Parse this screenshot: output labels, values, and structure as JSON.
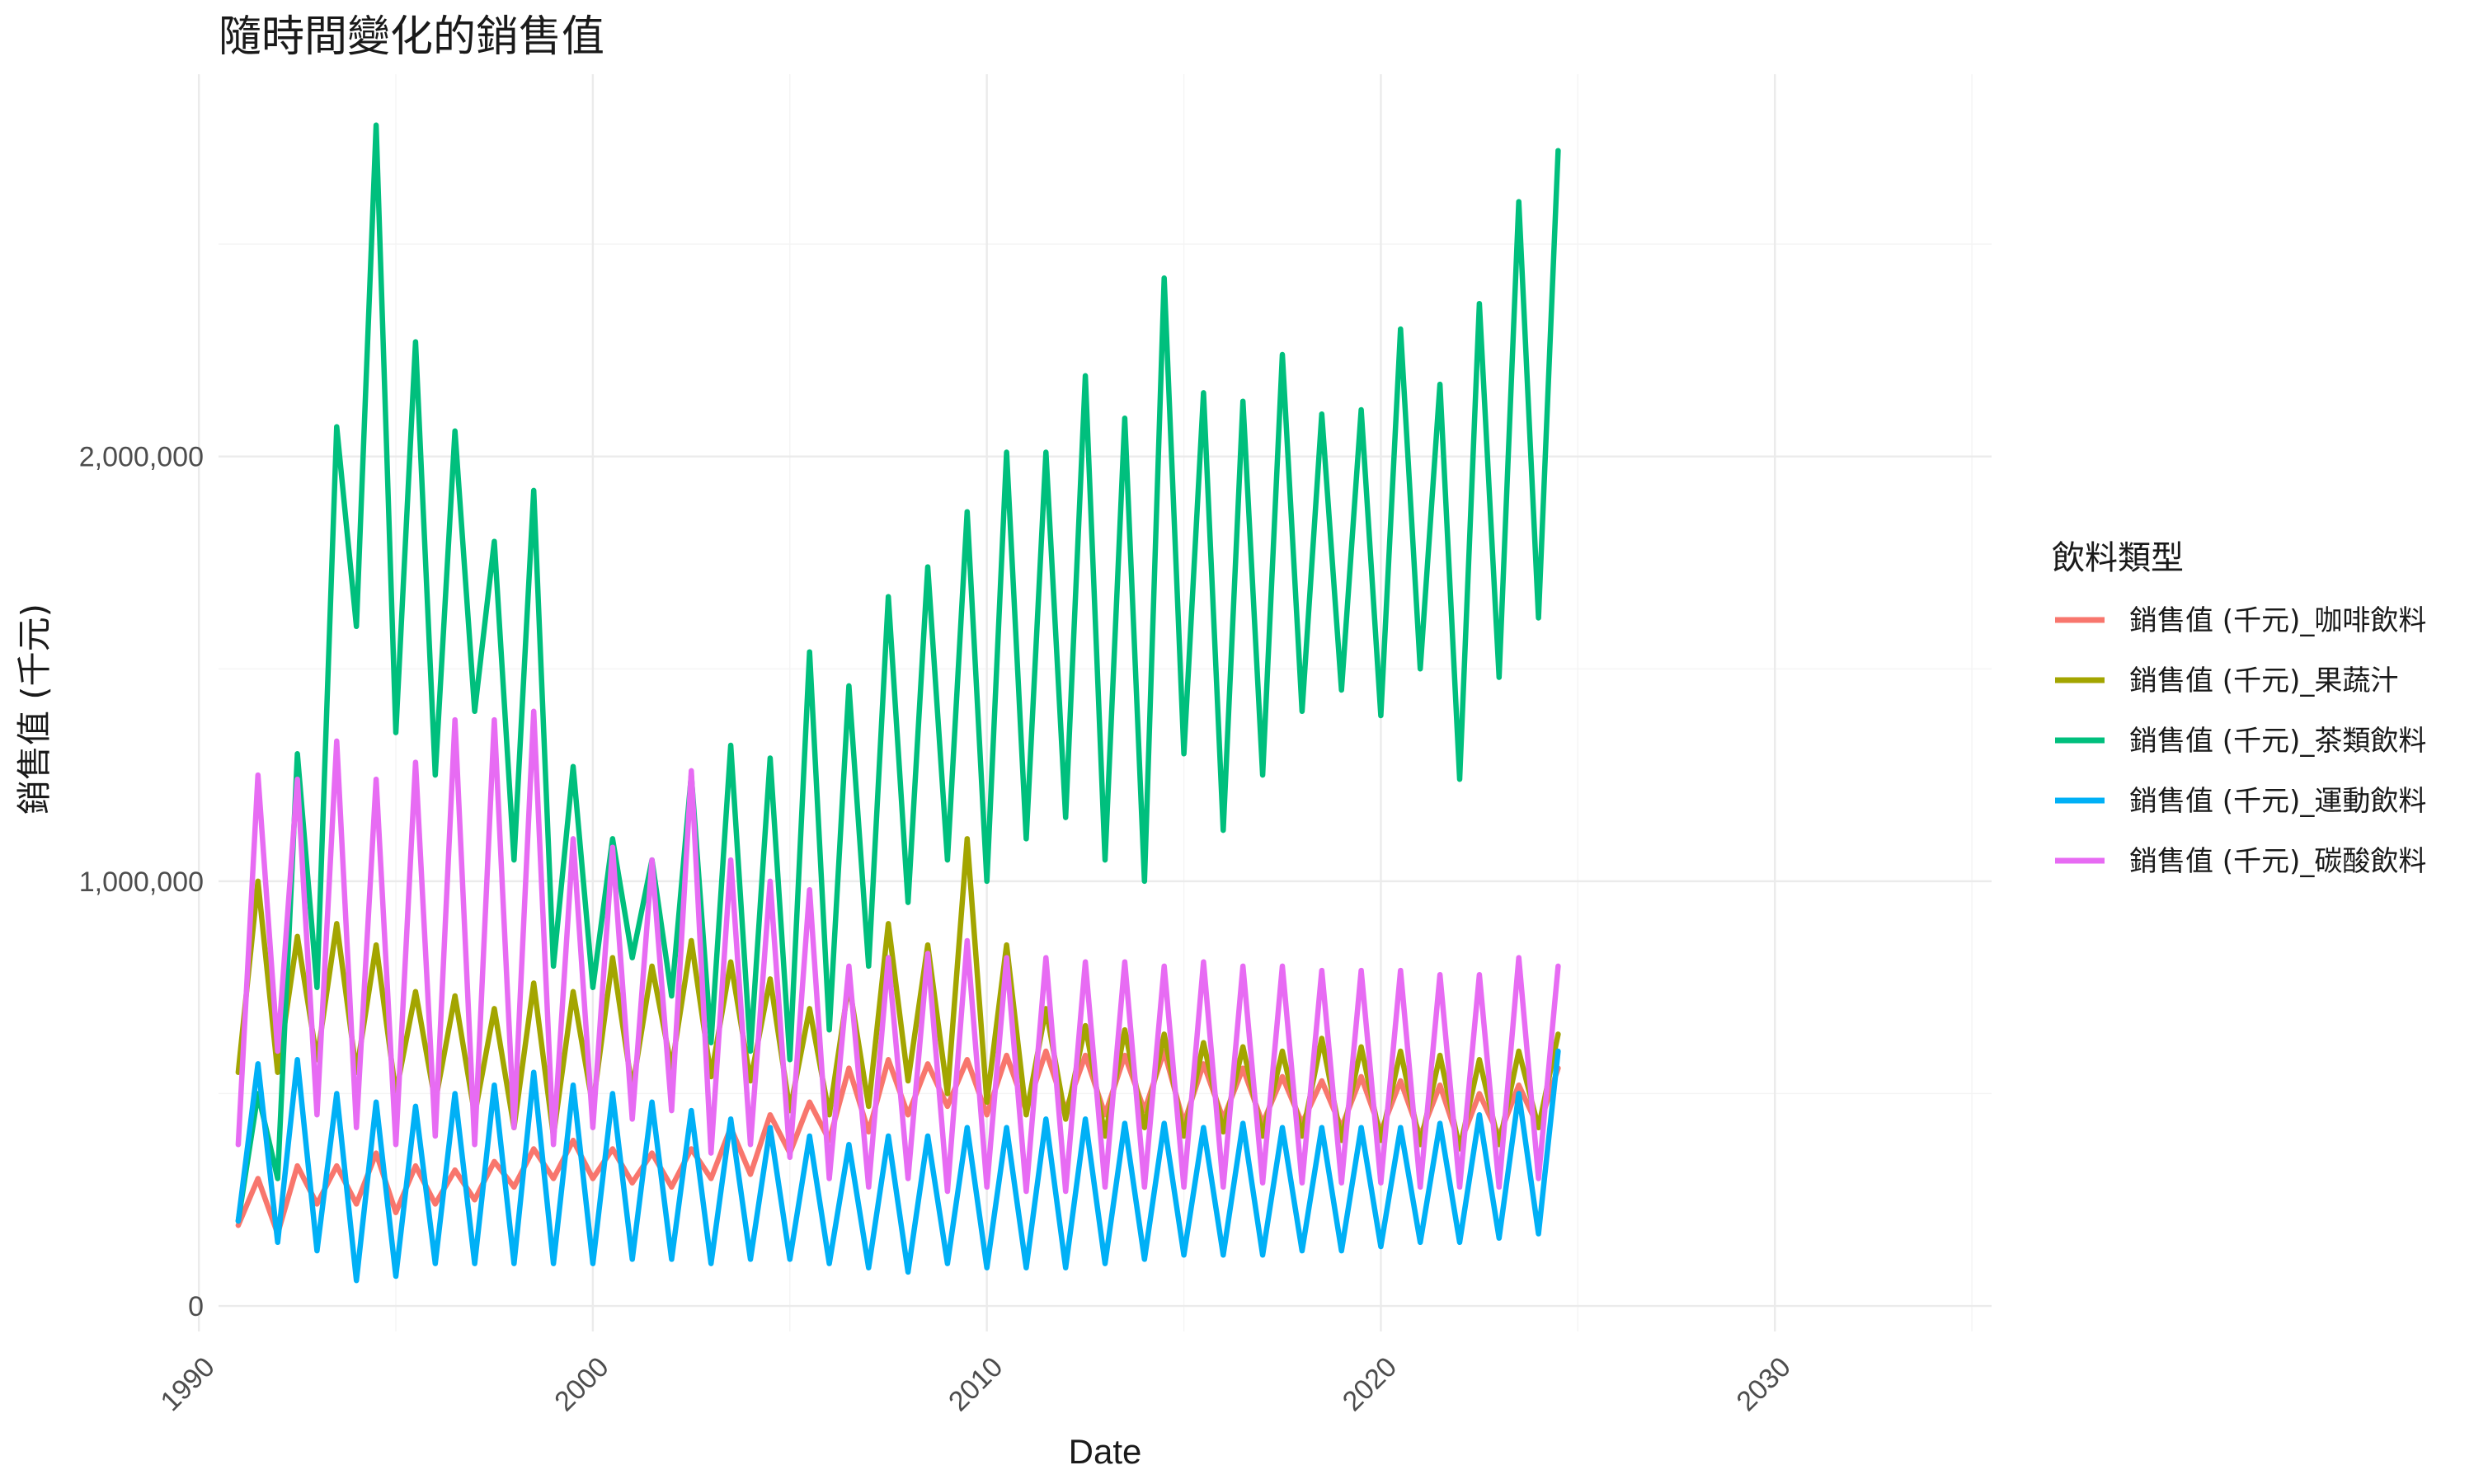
{
  "chart_data": {
    "type": "line",
    "title": "隨時間變化的銷售值",
    "xlabel": "Date",
    "ylabel": "銷售值 (千元)",
    "xlim": [
      1990.5,
      2035.5
    ],
    "ylim": [
      -60000,
      2900000
    ],
    "x_ticks": [
      1990,
      2000,
      2010,
      2020,
      2030
    ],
    "y_ticks": [
      0,
      1000000,
      2000000
    ],
    "y_tick_labels": [
      "0",
      "1,000,000",
      "2,000,000"
    ],
    "grid": true,
    "legend_position": "right",
    "legend_title": "飲料類型",
    "series": [
      {
        "name": "銷售值 (千元)_咖啡飲料",
        "color": "#F8766D",
        "x": [
          1991.0,
          1991.5,
          1992.0,
          1992.5,
          1993.0,
          1993.5,
          1994.0,
          1994.5,
          1995.0,
          1995.5,
          1996.0,
          1996.5,
          1997.0,
          1997.5,
          1998.0,
          1998.5,
          1999.0,
          1999.5,
          2000.0,
          2000.5,
          2001.0,
          2001.5,
          2002.0,
          2002.5,
          2003.0,
          2003.5,
          2004.0,
          2004.5,
          2005.0,
          2005.5,
          2006.0,
          2006.5,
          2007.0,
          2007.5,
          2008.0,
          2008.5,
          2009.0,
          2009.5,
          2010.0,
          2010.5,
          2011.0,
          2011.5,
          2012.0,
          2012.5,
          2013.0,
          2013.5,
          2014.0,
          2014.5,
          2015.0,
          2015.5,
          2016.0,
          2016.5,
          2017.0,
          2017.5,
          2018.0,
          2018.5,
          2019.0,
          2019.5,
          2020.0,
          2020.5,
          2021.0,
          2021.5,
          2022.0,
          2022.5,
          2023.0,
          2023.5,
          2024.0,
          2024.5
        ],
        "y": [
          190000,
          300000,
          170000,
          330000,
          240000,
          330000,
          240000,
          360000,
          220000,
          330000,
          240000,
          320000,
          250000,
          340000,
          280000,
          370000,
          300000,
          390000,
          300000,
          370000,
          290000,
          360000,
          280000,
          370000,
          300000,
          420000,
          310000,
          450000,
          360000,
          480000,
          390000,
          560000,
          410000,
          580000,
          450000,
          570000,
          470000,
          580000,
          450000,
          590000,
          460000,
          600000,
          460000,
          590000,
          450000,
          590000,
          460000,
          600000,
          430000,
          570000,
          440000,
          560000,
          430000,
          540000,
          430000,
          530000,
          420000,
          540000,
          410000,
          530000,
          400000,
          520000,
          380000,
          500000,
          400000,
          520000,
          420000,
          560000
        ]
      },
      {
        "name": "銷售值 (千元)_果蔬汁",
        "color": "#A3A500",
        "x": [
          1991.0,
          1991.5,
          1992.0,
          1992.5,
          1993.0,
          1993.5,
          1994.0,
          1994.5,
          1995.0,
          1995.5,
          1996.0,
          1996.5,
          1997.0,
          1997.5,
          1998.0,
          1998.5,
          1999.0,
          1999.5,
          2000.0,
          2000.5,
          2001.0,
          2001.5,
          2002.0,
          2002.5,
          2003.0,
          2003.5,
          2004.0,
          2004.5,
          2005.0,
          2005.5,
          2006.0,
          2006.5,
          2007.0,
          2007.5,
          2008.0,
          2008.5,
          2009.0,
          2009.5,
          2010.0,
          2010.5,
          2011.0,
          2011.5,
          2012.0,
          2012.5,
          2013.0,
          2013.5,
          2014.0,
          2014.5,
          2015.0,
          2015.5,
          2016.0,
          2016.5,
          2017.0,
          2017.5,
          2018.0,
          2018.5,
          2019.0,
          2019.5,
          2020.0,
          2020.5,
          2021.0,
          2021.5,
          2022.0,
          2022.5,
          2023.0,
          2023.5,
          2024.0,
          2024.5
        ],
        "y": [
          550000,
          1000000,
          550000,
          870000,
          580000,
          900000,
          550000,
          850000,
          500000,
          740000,
          480000,
          730000,
          450000,
          700000,
          420000,
          760000,
          400000,
          740000,
          470000,
          820000,
          510000,
          800000,
          560000,
          860000,
          540000,
          810000,
          530000,
          770000,
          460000,
          700000,
          450000,
          760000,
          470000,
          900000,
          530000,
          850000,
          500000,
          1100000,
          480000,
          850000,
          450000,
          700000,
          440000,
          660000,
          400000,
          650000,
          420000,
          640000,
          400000,
          620000,
          410000,
          610000,
          400000,
          600000,
          400000,
          630000,
          390000,
          610000,
          390000,
          600000,
          380000,
          590000,
          370000,
          580000,
          380000,
          600000,
          420000,
          640000
        ]
      },
      {
        "name": "銷售值 (千元)_茶類飲料",
        "color": "#00BF7D",
        "x": [
          1991.0,
          1991.5,
          1992.0,
          1992.5,
          1993.0,
          1993.5,
          1994.0,
          1994.5,
          1995.0,
          1995.5,
          1996.0,
          1996.5,
          1997.0,
          1997.5,
          1998.0,
          1998.5,
          1999.0,
          1999.5,
          2000.0,
          2000.5,
          2001.0,
          2001.5,
          2002.0,
          2002.5,
          2003.0,
          2003.5,
          2004.0,
          2004.5,
          2005.0,
          2005.5,
          2006.0,
          2006.5,
          2007.0,
          2007.5,
          2008.0,
          2008.5,
          2009.0,
          2009.5,
          2010.0,
          2010.5,
          2011.0,
          2011.5,
          2012.0,
          2012.5,
          2013.0,
          2013.5,
          2014.0,
          2014.5,
          2015.0,
          2015.5,
          2016.0,
          2016.5,
          2017.0,
          2017.5,
          2018.0,
          2018.5,
          2019.0,
          2019.5,
          2020.0,
          2020.5,
          2021.0,
          2021.5,
          2022.0,
          2022.5,
          2023.0,
          2023.5,
          2024.0,
          2024.5
        ],
        "y": [
          200000,
          500000,
          300000,
          1300000,
          750000,
          2070000,
          1600000,
          2780000,
          1350000,
          2270000,
          1250000,
          2060000,
          1400000,
          1800000,
          1050000,
          1920000,
          800000,
          1270000,
          750000,
          1100000,
          820000,
          1050000,
          730000,
          1250000,
          620000,
          1320000,
          600000,
          1290000,
          580000,
          1540000,
          650000,
          1460000,
          800000,
          1670000,
          950000,
          1740000,
          1050000,
          1870000,
          1000000,
          2010000,
          1100000,
          2010000,
          1150000,
          2190000,
          1050000,
          2090000,
          1000000,
          2420000,
          1300000,
          2150000,
          1120000,
          2130000,
          1250000,
          2240000,
          1400000,
          2100000,
          1450000,
          2110000,
          1390000,
          2300000,
          1500000,
          2170000,
          1240000,
          2360000,
          1480000,
          2600000,
          1620000,
          2720000
        ]
      },
      {
        "name": "銷售值 (千元)_運動飲料",
        "color": "#00B0F6",
        "x": [
          1991.0,
          1991.5,
          1992.0,
          1992.5,
          1993.0,
          1993.5,
          1994.0,
          1994.5,
          1995.0,
          1995.5,
          1996.0,
          1996.5,
          1997.0,
          1997.5,
          1998.0,
          1998.5,
          1999.0,
          1999.5,
          2000.0,
          2000.5,
          2001.0,
          2001.5,
          2002.0,
          2002.5,
          2003.0,
          2003.5,
          2004.0,
          2004.5,
          2005.0,
          2005.5,
          2006.0,
          2006.5,
          2007.0,
          2007.5,
          2008.0,
          2008.5,
          2009.0,
          2009.5,
          2010.0,
          2010.5,
          2011.0,
          2011.5,
          2012.0,
          2012.5,
          2013.0,
          2013.5,
          2014.0,
          2014.5,
          2015.0,
          2015.5,
          2016.0,
          2016.5,
          2017.0,
          2017.5,
          2018.0,
          2018.5,
          2019.0,
          2019.5,
          2020.0,
          2020.5,
          2021.0,
          2021.5,
          2022.0,
          2022.5,
          2023.0,
          2023.5,
          2024.0,
          2024.5
        ],
        "y": [
          200000,
          570000,
          150000,
          580000,
          130000,
          500000,
          60000,
          480000,
          70000,
          470000,
          100000,
          500000,
          100000,
          520000,
          100000,
          550000,
          100000,
          520000,
          100000,
          500000,
          110000,
          480000,
          110000,
          460000,
          100000,
          440000,
          110000,
          420000,
          110000,
          400000,
          100000,
          380000,
          90000,
          400000,
          80000,
          400000,
          100000,
          420000,
          90000,
          420000,
          90000,
          440000,
          90000,
          440000,
          100000,
          430000,
          110000,
          430000,
          120000,
          420000,
          120000,
          430000,
          120000,
          420000,
          130000,
          420000,
          130000,
          420000,
          140000,
          420000,
          150000,
          430000,
          150000,
          450000,
          160000,
          500000,
          170000,
          600000
        ]
      },
      {
        "name": "銷售值 (千元)_碳酸飲料",
        "color": "#E76BF3",
        "x": [
          1991.0,
          1991.5,
          1992.0,
          1992.5,
          1993.0,
          1993.5,
          1994.0,
          1994.5,
          1995.0,
          1995.5,
          1996.0,
          1996.5,
          1997.0,
          1997.5,
          1998.0,
          1998.5,
          1999.0,
          1999.5,
          2000.0,
          2000.5,
          2001.0,
          2001.5,
          2002.0,
          2002.5,
          2003.0,
          2003.5,
          2004.0,
          2004.5,
          2005.0,
          2005.5,
          2006.0,
          2006.5,
          2007.0,
          2007.5,
          2008.0,
          2008.5,
          2009.0,
          2009.5,
          2010.0,
          2010.5,
          2011.0,
          2011.5,
          2012.0,
          2012.5,
          2013.0,
          2013.5,
          2014.0,
          2014.5,
          2015.0,
          2015.5,
          2016.0,
          2016.5,
          2017.0,
          2017.5,
          2018.0,
          2018.5,
          2019.0,
          2019.5,
          2020.0,
          2020.5,
          2021.0,
          2021.5,
          2022.0,
          2022.5,
          2023.0,
          2023.5,
          2024.0,
          2024.5
        ],
        "y": [
          380000,
          1250000,
          600000,
          1240000,
          450000,
          1330000,
          420000,
          1240000,
          380000,
          1280000,
          400000,
          1380000,
          380000,
          1380000,
          420000,
          1400000,
          380000,
          1100000,
          420000,
          1080000,
          440000,
          1050000,
          460000,
          1260000,
          360000,
          1050000,
          380000,
          1000000,
          350000,
          980000,
          300000,
          800000,
          280000,
          820000,
          300000,
          830000,
          270000,
          860000,
          280000,
          820000,
          270000,
          820000,
          270000,
          810000,
          280000,
          810000,
          280000,
          800000,
          280000,
          810000,
          280000,
          800000,
          290000,
          800000,
          290000,
          790000,
          290000,
          790000,
          290000,
          790000,
          280000,
          780000,
          280000,
          780000,
          280000,
          820000,
          300000,
          800000
        ]
      }
    ]
  }
}
